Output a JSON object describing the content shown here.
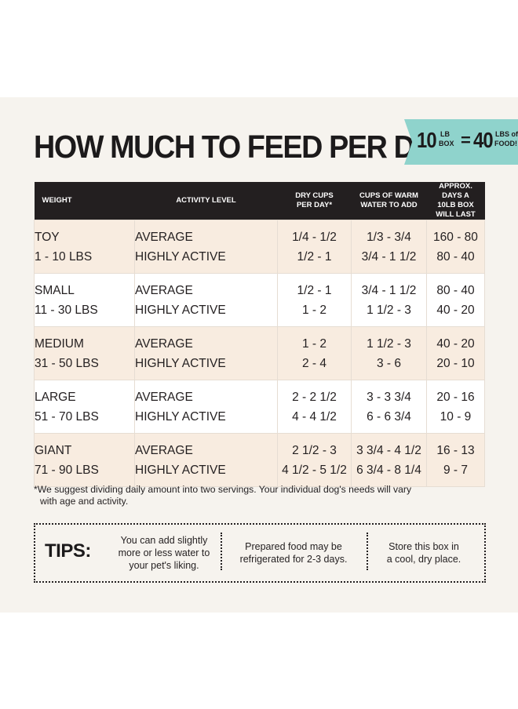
{
  "title": "HOW MUCH TO FEED PER DAY",
  "badge": {
    "box_num": "10",
    "box_unit_top": "LB",
    "box_unit_bottom": "BOX",
    "equals": "=",
    "food_num": "40",
    "food_unit_top": "LBS of",
    "food_unit_bottom": "FOOD!"
  },
  "table": {
    "headers": {
      "weight": "WEIGHT",
      "activity": "ACTIVITY LEVEL",
      "dry_cups_1": "DRY CUPS",
      "dry_cups_2": "PER DAY*",
      "water_1": "CUPS OF WARM",
      "water_2": "WATER TO ADD",
      "days_1": "APPROX. DAYS A",
      "days_2": "10LB BOX WILL LAST"
    },
    "rows": [
      {
        "name": "TOY",
        "range": "1 - 10 LBS",
        "act1": "AVERAGE",
        "act2": "HIGHLY ACTIVE",
        "dry1": "1/4 - 1/2",
        "dry2": "1/2 - 1",
        "water1": "1/3 - 3/4",
        "water2": "3/4 - 1 1/2",
        "days1": "160 - 80",
        "days2": "80 - 40"
      },
      {
        "name": "SMALL",
        "range": "11 - 30 LBS",
        "act1": "AVERAGE",
        "act2": "HIGHLY ACTIVE",
        "dry1": "1/2 - 1",
        "dry2": "1 - 2",
        "water1": "3/4 - 1 1/2",
        "water2": "1 1/2 - 3",
        "days1": "80 - 40",
        "days2": "40 - 20"
      },
      {
        "name": "MEDIUM",
        "range": "31 - 50 LBS",
        "act1": "AVERAGE",
        "act2": "HIGHLY ACTIVE",
        "dry1": "1 - 2",
        "dry2": "2 - 4",
        "water1": "1 1/2 - 3",
        "water2": "3 - 6",
        "days1": "40 - 20",
        "days2": "20 - 10"
      },
      {
        "name": "LARGE",
        "range": "51 - 70 LBS",
        "act1": "AVERAGE",
        "act2": "HIGHLY ACTIVE",
        "dry1": "2 - 2 1/2",
        "dry2": "4 - 4 1/2",
        "water1": "3 - 3 3/4",
        "water2": "6 - 6 3/4",
        "days1": "20 - 16",
        "days2": "10 - 9"
      },
      {
        "name": "GIANT",
        "range": "71 - 90 LBS",
        "act1": "AVERAGE",
        "act2": "HIGHLY ACTIVE",
        "dry1": "2 1/2 - 3",
        "dry2": "4 1/2 - 5 1/2",
        "water1": "3 3/4 - 4 1/2",
        "water2": "6 3/4 - 8 1/4",
        "days1": "16 - 13",
        "days2": "9 - 7"
      }
    ]
  },
  "footnote": {
    "line1": "*We suggest dividing daily amount into two servings. Your individual dog's needs will vary",
    "line2": "with age and activity."
  },
  "tips": {
    "label": "TIPS:",
    "tip1_l1": "You can add slightly",
    "tip1_l2": "more or less water to",
    "tip1_l3": "your pet's liking.",
    "tip2_l1": "Prepared food may be",
    "tip2_l2": "refrigerated for 2-3 days.",
    "tip3_l1": "Store this box in",
    "tip3_l2": "a cool, dry place."
  },
  "colors": {
    "panel_bg": "#f6f3ee",
    "header_bg": "#231f20",
    "row_shade": "#f8ece0",
    "badge_bg": "#8fd3cc"
  }
}
